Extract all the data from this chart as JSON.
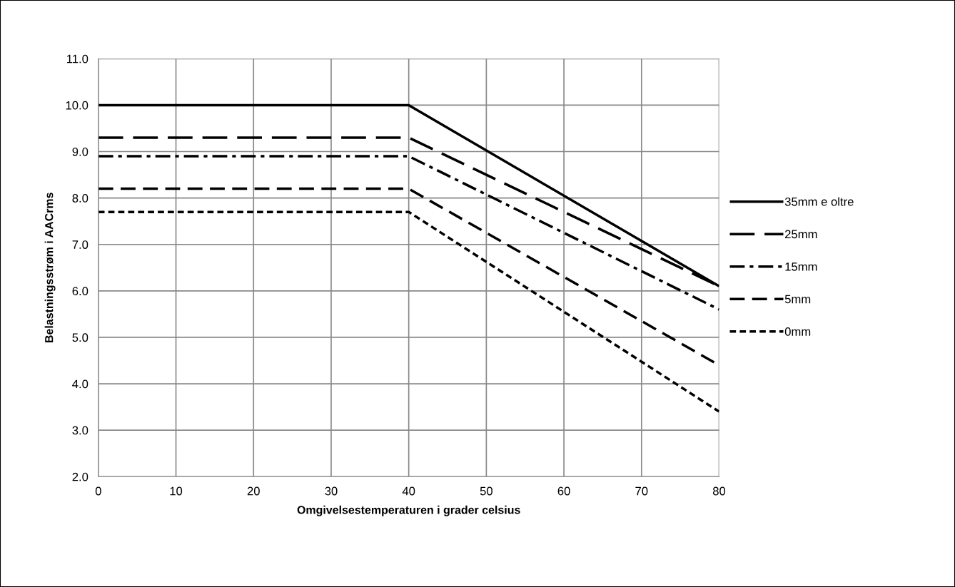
{
  "chart_data": {
    "type": "line",
    "xlabel": "Omgivelsestemperaturen i grader celsius",
    "ylabel": "Belastningsstrøm i AACrms",
    "x": [
      0,
      40,
      80
    ],
    "series": [
      {
        "name": "35mm e oltre",
        "color": "#000000",
        "line_style": "solid",
        "values": [
          10.0,
          10.0,
          6.1
        ]
      },
      {
        "name": "25mm",
        "color": "#000000",
        "line_style": "longdash",
        "values": [
          9.3,
          9.3,
          6.1
        ]
      },
      {
        "name": "15mm",
        "color": "#000000",
        "line_style": "dashdot",
        "values": [
          8.9,
          8.9,
          5.6
        ]
      },
      {
        "name": "5mm",
        "color": "#000000",
        "line_style": "dashed",
        "values": [
          8.2,
          8.2,
          4.4
        ]
      },
      {
        "name": "0mm",
        "color": "#000000",
        "line_style": "dotted",
        "values": [
          7.7,
          7.7,
          3.4
        ]
      }
    ],
    "xlim": [
      0,
      80
    ],
    "xticks": [
      0,
      10,
      20,
      30,
      40,
      50,
      60,
      70,
      80
    ],
    "ylim": [
      2.0,
      11.0
    ],
    "yticks": [
      {
        "value": 2,
        "label": "2.0"
      },
      {
        "value": 3,
        "label": "3.0"
      },
      {
        "value": 4,
        "label": "4.0"
      },
      {
        "value": 5,
        "label": "5.0"
      },
      {
        "value": 6,
        "label": "6.0"
      },
      {
        "value": 7,
        "label": "7.0"
      },
      {
        "value": 8,
        "label": "8.0"
      },
      {
        "value": 9,
        "label": "9.0"
      },
      {
        "value": 10,
        "label": "10.0"
      },
      {
        "value": 11,
        "label": "11.0"
      }
    ],
    "grid": true,
    "legend": "right",
    "marker": "none"
  }
}
